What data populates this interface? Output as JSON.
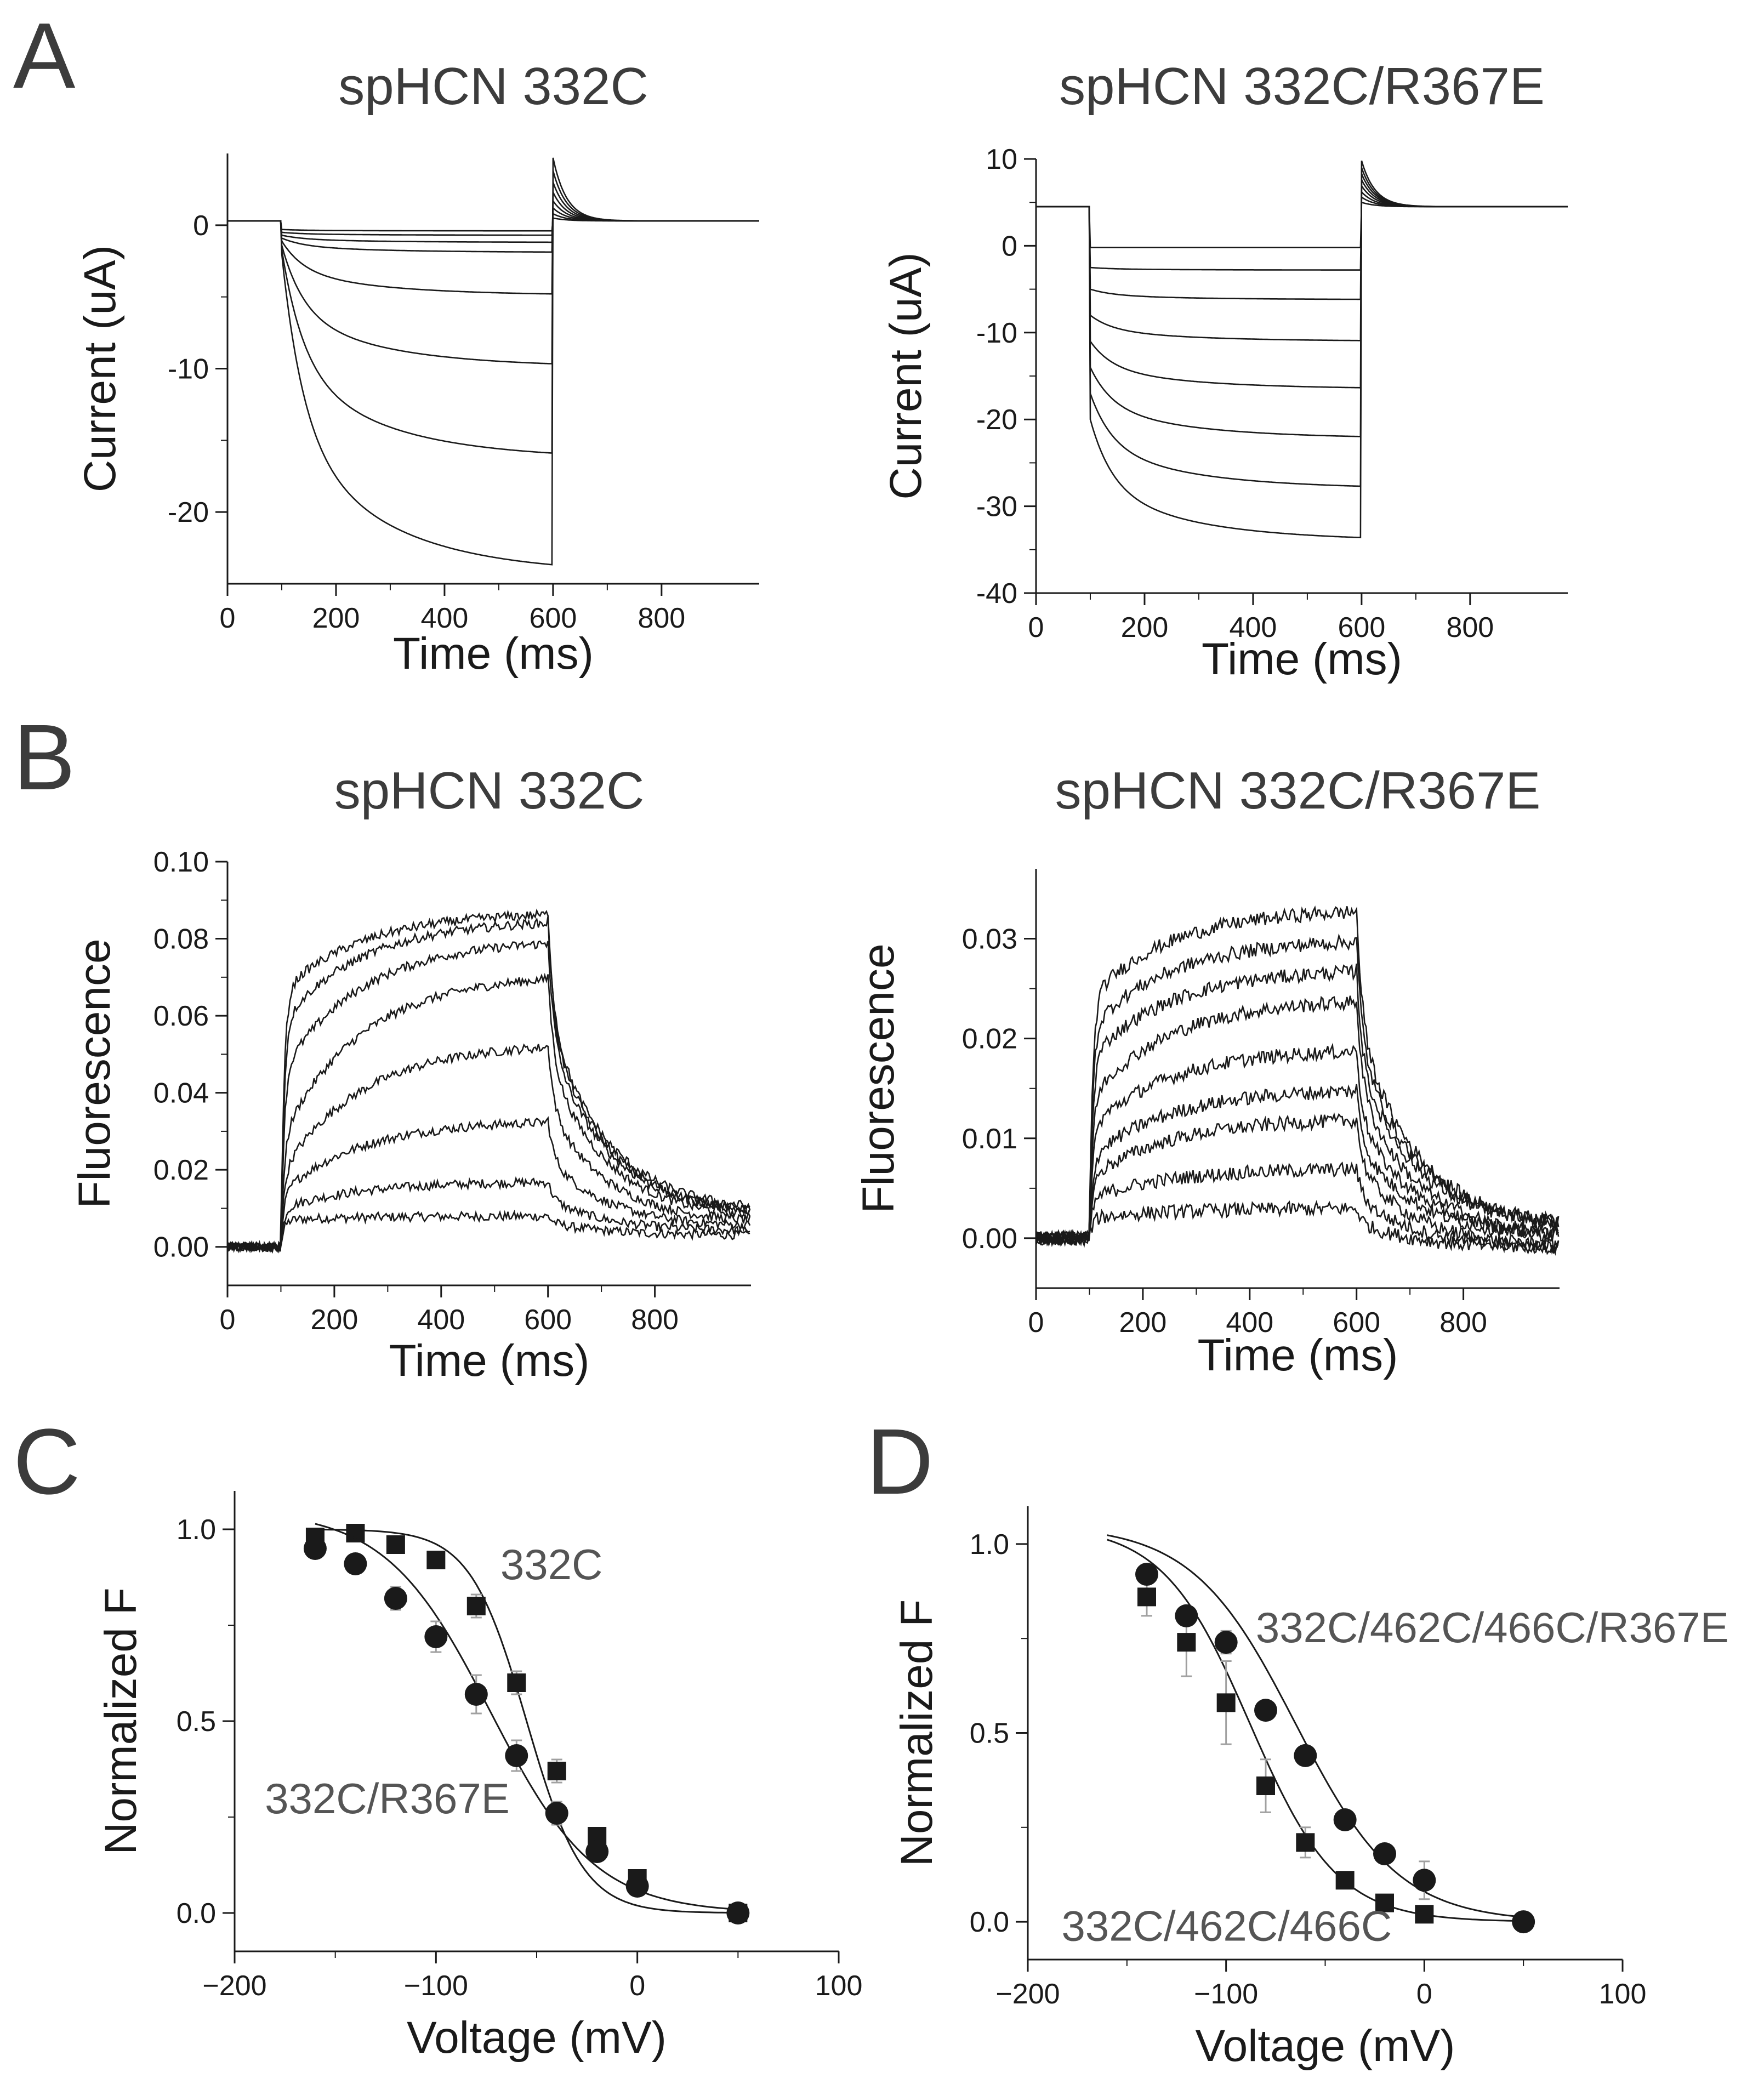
{
  "chart_data": [
    {
      "id": "A_left",
      "panel": "A",
      "type": "line",
      "title": "spHCN 332C",
      "xlabel": "Time (ms)",
      "ylabel": "Current (uA)",
      "xlim": [
        0,
        980
      ],
      "ylim": [
        -25,
        5
      ],
      "xticks": [
        0,
        200,
        400,
        600,
        800
      ],
      "yticks": [
        -20,
        -10,
        0
      ],
      "grid": false,
      "protocol": {
        "step_on_ms": 100,
        "step_off_ms": 600,
        "holding_level": 0.3
      },
      "traces": [
        {
          "name": "trace-1",
          "ss": -0.4,
          "inst": -0.3,
          "tail": 0.5
        },
        {
          "name": "trace-2",
          "ss": -0.7,
          "inst": -0.5,
          "tail": 0.8
        },
        {
          "name": "trace-3",
          "ss": -1.2,
          "inst": -0.7,
          "tail": 1.2
        },
        {
          "name": "trace-4",
          "ss": -1.9,
          "inst": -0.9,
          "tail": 1.7
        },
        {
          "name": "trace-5",
          "ss": -4.9,
          "inst": -1.1,
          "tail": 2.3
        },
        {
          "name": "trace-6",
          "ss": -9.9,
          "inst": -1.4,
          "tail": 3.0
        },
        {
          "name": "trace-7",
          "ss": -16.3,
          "inst": -1.7,
          "tail": 3.8
        },
        {
          "name": "trace-8",
          "ss": -24.3,
          "inst": -2.0,
          "tail": 4.7
        }
      ]
    },
    {
      "id": "A_right",
      "panel": "A",
      "type": "line",
      "title": "spHCN 332C/R367E",
      "xlabel": "Time (ms)",
      "ylabel": "Current (uA)",
      "xlim": [
        0,
        980
      ],
      "ylim": [
        -40,
        10
      ],
      "xticks": [
        0,
        200,
        400,
        600,
        800
      ],
      "yticks": [
        -40,
        -30,
        -20,
        -10,
        0,
        10
      ],
      "grid": false,
      "protocol": {
        "step_on_ms": 100,
        "step_off_ms": 600,
        "holding_level": 4.5
      },
      "traces": [
        {
          "name": "trace-1",
          "ss": -0.2,
          "inst": -0.2,
          "tail": 5.0
        },
        {
          "name": "trace-2",
          "ss": -2.8,
          "inst": -2.5,
          "tail": 5.6
        },
        {
          "name": "trace-3",
          "ss": -6.2,
          "inst": -5.0,
          "tail": 6.2
        },
        {
          "name": "trace-4",
          "ss": -11.0,
          "inst": -8.0,
          "tail": 6.9
        },
        {
          "name": "trace-5",
          "ss": -16.5,
          "inst": -11.0,
          "tail": 7.6
        },
        {
          "name": "trace-6",
          "ss": -22.2,
          "inst": -14.0,
          "tail": 8.3
        },
        {
          "name": "trace-7",
          "ss": -28.0,
          "inst": -17.0,
          "tail": 9.0
        },
        {
          "name": "trace-8",
          "ss": -34.0,
          "inst": -20.0,
          "tail": 9.8
        }
      ]
    },
    {
      "id": "B_left",
      "panel": "B",
      "type": "line",
      "title": "spHCN 332C",
      "xlabel": "Time (ms)",
      "ylabel": "Fluorescence",
      "xlim": [
        0,
        980
      ],
      "ylim": [
        -0.01,
        0.1
      ],
      "xticks": [
        0,
        200,
        400,
        600,
        800
      ],
      "yticks": [
        0.0,
        0.02,
        0.04,
        0.06,
        0.08,
        0.1
      ],
      "ytick_labels": [
        "0.00",
        "0.02",
        "0.04",
        "0.06",
        "0.08",
        "0.10"
      ],
      "grid": false,
      "protocol": {
        "step_on_ms": 100,
        "step_off_ms": 600,
        "baseline": 0.0,
        "noise": 0.0012
      },
      "traces": [
        {
          "name": "trace-1",
          "fast": 0.007,
          "final": 0.008,
          "end": 0.003
        },
        {
          "name": "trace-2",
          "fast": 0.01,
          "final": 0.017,
          "end": 0.004
        },
        {
          "name": "trace-3",
          "fast": 0.014,
          "final": 0.033,
          "end": 0.005
        },
        {
          "name": "trace-4",
          "fast": 0.019,
          "final": 0.053,
          "end": 0.006
        },
        {
          "name": "trace-5",
          "fast": 0.028,
          "final": 0.071,
          "end": 0.007
        },
        {
          "name": "trace-6",
          "fast": 0.045,
          "final": 0.08,
          "end": 0.008
        },
        {
          "name": "trace-7",
          "fast": 0.058,
          "final": 0.085,
          "end": 0.008
        },
        {
          "name": "trace-8",
          "fast": 0.066,
          "final": 0.087,
          "end": 0.009
        }
      ]
    },
    {
      "id": "B_right",
      "panel": "B",
      "type": "line",
      "title": "spHCN 332C/R367E",
      "xlabel": "Time (ms)",
      "ylabel": "Fluorescence",
      "xlim": [
        0,
        980
      ],
      "ylim": [
        -0.005,
        0.037
      ],
      "xticks": [
        0,
        200,
        400,
        600,
        800
      ],
      "yticks": [
        0.0,
        0.01,
        0.02,
        0.03
      ],
      "ytick_labels": [
        "0.00",
        "0.01",
        "0.02",
        "0.03"
      ],
      "grid": false,
      "protocol": {
        "step_on_ms": 100,
        "step_off_ms": 600,
        "baseline": 0.0,
        "noise": 0.0007
      },
      "traces": [
        {
          "name": "trace-1",
          "fast": 0.002,
          "final": 0.003,
          "end": -0.001
        },
        {
          "name": "trace-2",
          "fast": 0.004,
          "final": 0.007,
          "end": -0.001
        },
        {
          "name": "trace-3",
          "fast": 0.006,
          "final": 0.012,
          "end": -0.001
        },
        {
          "name": "trace-4",
          "fast": 0.008,
          "final": 0.015,
          "end": 0.0
        },
        {
          "name": "trace-5",
          "fast": 0.011,
          "final": 0.019,
          "end": 0.0
        },
        {
          "name": "trace-6",
          "fast": 0.014,
          "final": 0.024,
          "end": 0.0
        },
        {
          "name": "trace-7",
          "fast": 0.018,
          "final": 0.027,
          "end": 0.001
        },
        {
          "name": "trace-8",
          "fast": 0.021,
          "final": 0.03,
          "end": 0.001
        },
        {
          "name": "trace-9",
          "fast": 0.024,
          "final": 0.033,
          "end": 0.001
        }
      ]
    },
    {
      "id": "C",
      "panel": "C",
      "type": "scatter",
      "xlabel": "Voltage (mV)",
      "ylabel": "Normalized F",
      "xlim": [
        -200,
        100
      ],
      "ylim": [
        -0.1,
        1.1
      ],
      "xticks": [
        -200,
        -100,
        0,
        100
      ],
      "xtick_labels": [
        "−200",
        "−100",
        "0",
        "100"
      ],
      "yticks": [
        0.0,
        0.5,
        1.0
      ],
      "ytick_labels": [
        "0.0",
        "0.5",
        "1.0"
      ],
      "grid": false,
      "series": [
        {
          "name": "332C",
          "marker": "square",
          "x": [
            -160,
            -140,
            -120,
            -100,
            -80,
            -60,
            -40,
            -20,
            0,
            50
          ],
          "y": [
            0.98,
            0.99,
            0.96,
            0.92,
            0.8,
            0.6,
            0.37,
            0.2,
            0.09,
            0.0
          ],
          "err": [
            0.01,
            0.01,
            0.015,
            0.02,
            0.03,
            0.03,
            0.03,
            0.02,
            0.015,
            0.005
          ],
          "fit": {
            "v_half": -55,
            "k": 14,
            "top": 1.0,
            "from": -160,
            "to": 50
          }
        },
        {
          "name": "332C/R367E",
          "marker": "circle",
          "x": [
            -160,
            -140,
            -120,
            -100,
            -80,
            -60,
            -40,
            -20,
            0,
            50
          ],
          "y": [
            0.95,
            0.91,
            0.82,
            0.72,
            0.57,
            0.41,
            0.26,
            0.16,
            0.07,
            0.0
          ],
          "err": [
            0.015,
            0.02,
            0.03,
            0.04,
            0.05,
            0.04,
            0.03,
            0.02,
            0.015,
            0.005
          ],
          "fit": {
            "v_half": -73,
            "k": 26,
            "top": 1.05,
            "from": -160,
            "to": 50
          }
        }
      ],
      "annotations": [
        {
          "text": "332C",
          "x": -68,
          "y": 0.87
        },
        {
          "text": "332C/R367E",
          "x": -185,
          "y": 0.26
        }
      ]
    },
    {
      "id": "D",
      "panel": "D",
      "type": "scatter",
      "xlabel": "Voltage (mV)",
      "ylabel": "Normalized F",
      "xlim": [
        -200,
        100
      ],
      "ylim": [
        -0.1,
        1.1
      ],
      "xticks": [
        -200,
        -100,
        0,
        100
      ],
      "xtick_labels": [
        "−200",
        "−100",
        "0",
        "100"
      ],
      "yticks": [
        0.0,
        0.5,
        1.0
      ],
      "ytick_labels": [
        "0.0",
        "0.5",
        "1.0"
      ],
      "grid": false,
      "series": [
        {
          "name": "332C/462C/466C",
          "marker": "square",
          "x": [
            -140,
            -120,
            -100,
            -80,
            -60,
            -40,
            -20,
            0
          ],
          "y": [
            0.86,
            0.74,
            0.58,
            0.36,
            0.21,
            0.11,
            0.05,
            0.02
          ],
          "err": [
            0.05,
            0.09,
            0.11,
            0.07,
            0.04,
            0.02,
            0.015,
            0.01
          ],
          "fit": {
            "v_half": -88,
            "k": 22,
            "top": 1.05,
            "from": -160,
            "to": 50
          }
        },
        {
          "name": "332C/462C/466C/R367E",
          "marker": "circle",
          "x": [
            -140,
            -120,
            -100,
            -80,
            -60,
            -40,
            -20,
            0,
            50
          ],
          "y": [
            0.92,
            0.81,
            0.74,
            0.56,
            0.44,
            0.27,
            0.18,
            0.11,
            0.0
          ],
          "err": [
            0.02,
            0.02,
            0.03,
            0.02,
            0.02,
            0.02,
            0.02,
            0.05,
            0.005
          ],
          "fit": {
            "v_half": -65,
            "k": 26,
            "top": 1.05,
            "from": -160,
            "to": 50
          }
        }
      ],
      "annotations": [
        {
          "text": "332C/462C/466C/R367E",
          "x": -85,
          "y": 0.74
        },
        {
          "text": "332C/462C/466C",
          "x": -183,
          "y": -0.05
        }
      ]
    }
  ],
  "panel_letters": {
    "a": "A",
    "b": "B",
    "c": "C",
    "d": "D"
  },
  "colors": {
    "trace": "#1a1a1a",
    "axis": "#1a1a1a",
    "label": "#3c3c3c",
    "annotation": "#555555",
    "errorbar": "#a0a0a0"
  }
}
